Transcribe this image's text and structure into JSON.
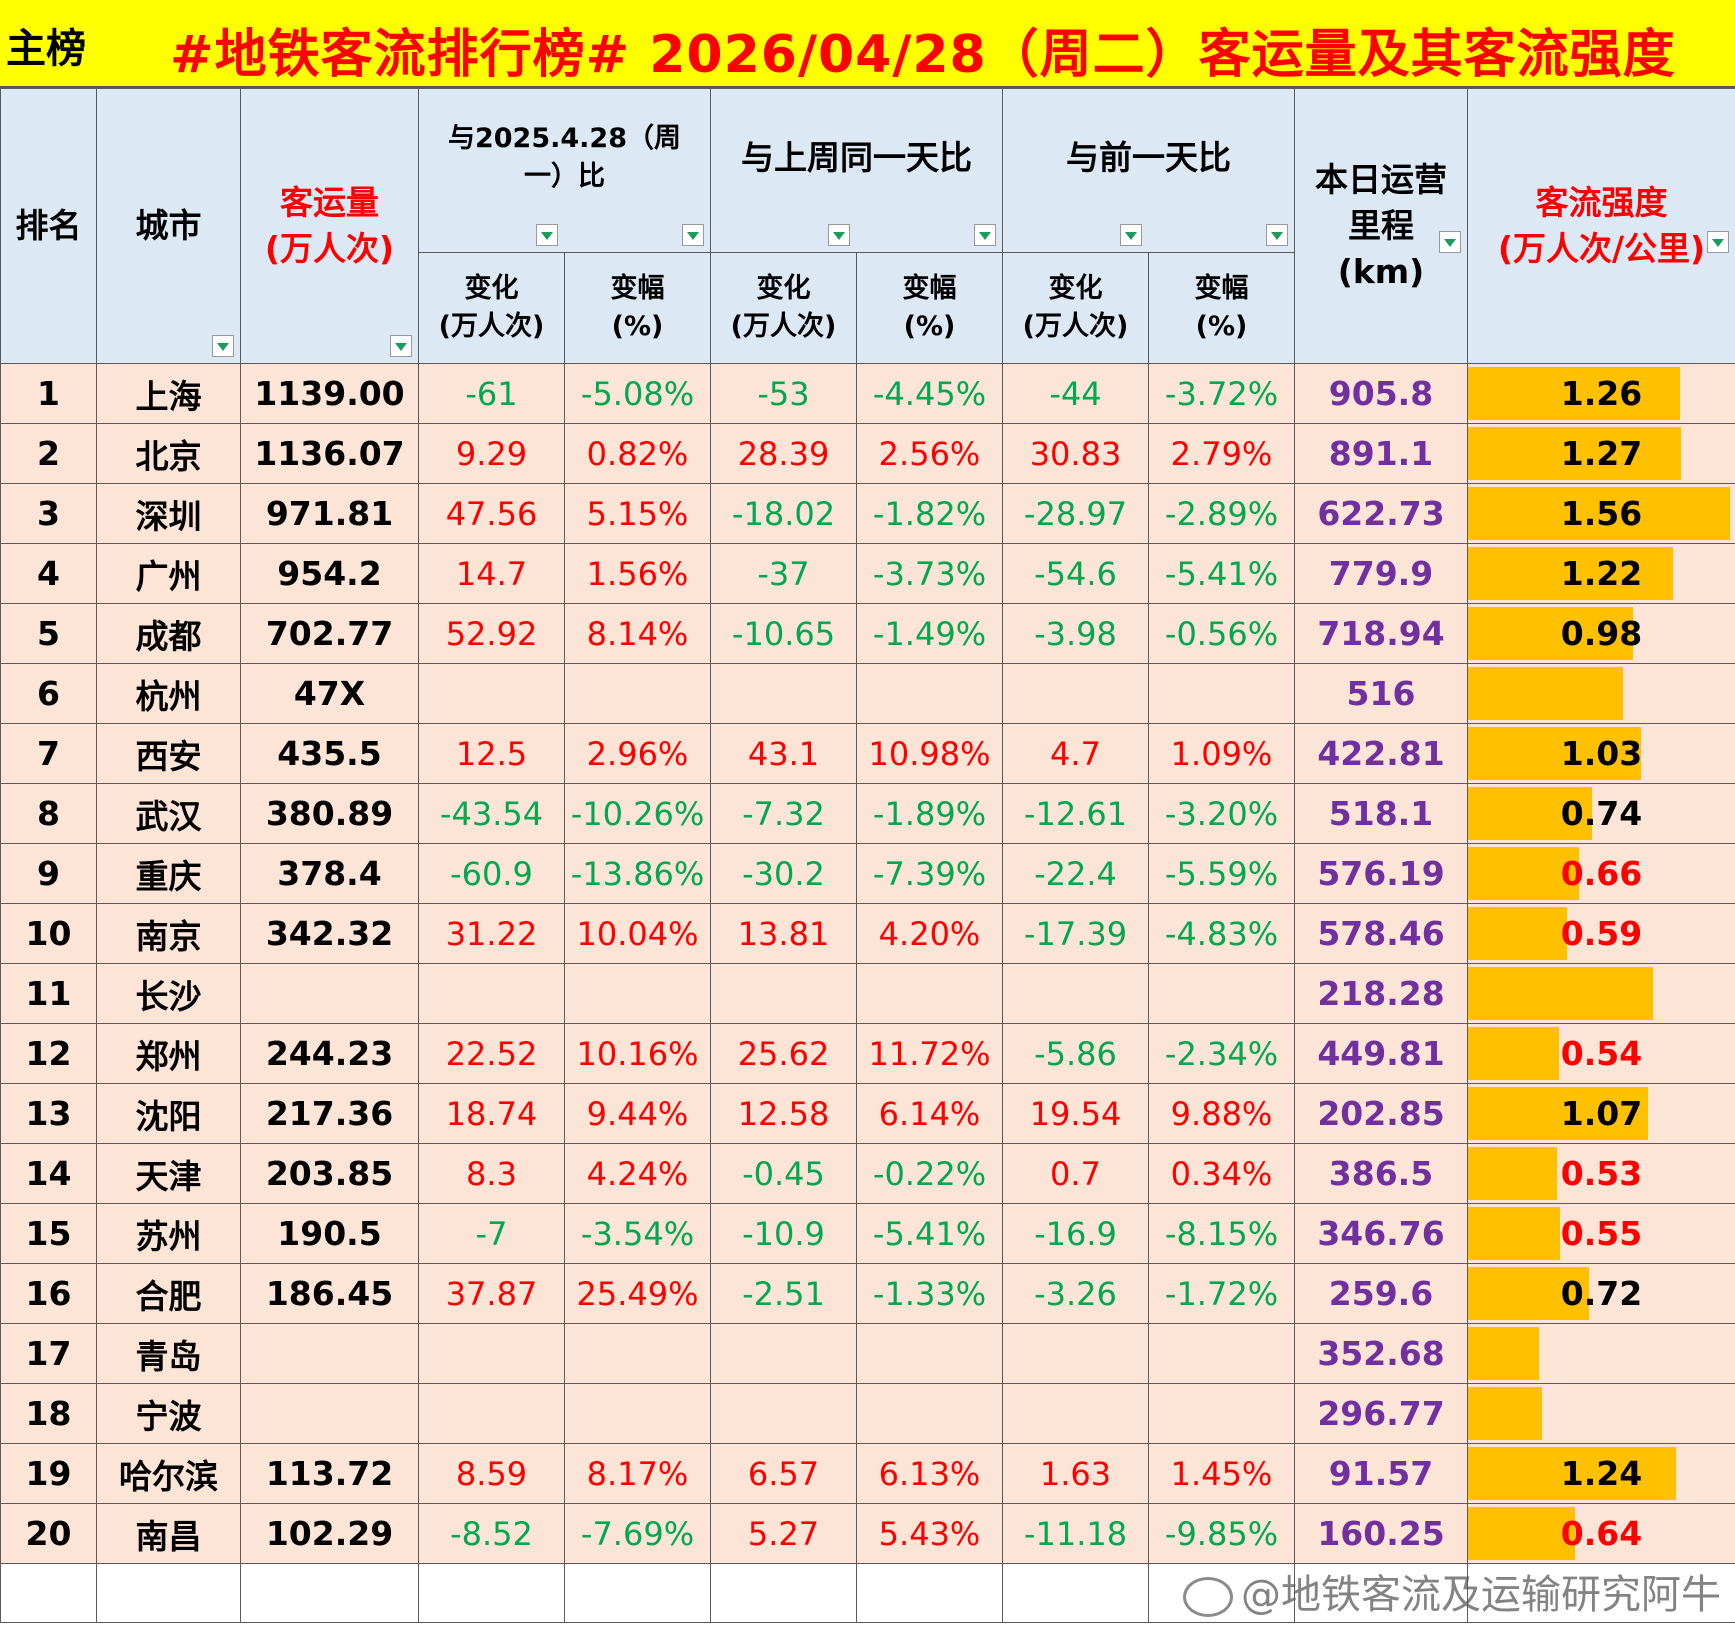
{
  "title": {
    "tag": "主榜",
    "main": "#地铁客流排行榜# 2026/04/28（周二）客运量及其客流强度"
  },
  "headers": {
    "rank": "排名",
    "city": "城市",
    "volume_line1": "客运量",
    "volume_line2": "(万人次)",
    "yoy_group_line1": "与2025.4.28（周",
    "yoy_group_line2": "一）比",
    "wow_group": "与上周同一天比",
    "dod_group": "与前一天比",
    "change_line1": "变化",
    "change_line2": "(万人次)",
    "pct_line1": "变幅",
    "pct_line2": "(%)",
    "km_line1": "本日运营",
    "km_line2": "里程",
    "km_line3": "(km)",
    "intensity_line1": "客流强度",
    "intensity_line2": "(万人次/公里)"
  },
  "rows": [
    {
      "rank": "1",
      "city": "上海",
      "volume": "1139.00",
      "yoy_chg": "-61",
      "yoy_pct": "-5.08%",
      "wow_chg": "-53",
      "wow_pct": "-4.45%",
      "dod_chg": "-44",
      "dod_pct": "-3.72%",
      "km": "905.8",
      "intensity": "1.26",
      "intensity_value": 1.26
    },
    {
      "rank": "2",
      "city": "北京",
      "volume": "1136.07",
      "yoy_chg": "9.29",
      "yoy_pct": "0.82%",
      "wow_chg": "28.39",
      "wow_pct": "2.56%",
      "dod_chg": "30.83",
      "dod_pct": "2.79%",
      "km": "891.1",
      "intensity": "1.27",
      "intensity_value": 1.27
    },
    {
      "rank": "3",
      "city": "深圳",
      "volume": "971.81",
      "yoy_chg": "47.56",
      "yoy_pct": "5.15%",
      "wow_chg": "-18.02",
      "wow_pct": "-1.82%",
      "dod_chg": "-28.97",
      "dod_pct": "-2.89%",
      "km": "622.73",
      "intensity": "1.56",
      "intensity_value": 1.56
    },
    {
      "rank": "4",
      "city": "广州",
      "volume": "954.2",
      "yoy_chg": "14.7",
      "yoy_pct": "1.56%",
      "wow_chg": "-37",
      "wow_pct": "-3.73%",
      "dod_chg": "-54.6",
      "dod_pct": "-5.41%",
      "km": "779.9",
      "intensity": "1.22",
      "intensity_value": 1.22
    },
    {
      "rank": "5",
      "city": "成都",
      "volume": "702.77",
      "yoy_chg": "52.92",
      "yoy_pct": "8.14%",
      "wow_chg": "-10.65",
      "wow_pct": "-1.49%",
      "dod_chg": "-3.98",
      "dod_pct": "-0.56%",
      "km": "718.94",
      "intensity": "0.98",
      "intensity_value": 0.98
    },
    {
      "rank": "6",
      "city": "杭州",
      "volume": "47X",
      "yoy_chg": "",
      "yoy_pct": "",
      "wow_chg": "",
      "wow_pct": "",
      "dod_chg": "",
      "dod_pct": "",
      "km": "516",
      "intensity": "",
      "intensity_value": 0.92
    },
    {
      "rank": "7",
      "city": "西安",
      "volume": "435.5",
      "yoy_chg": "12.5",
      "yoy_pct": "2.96%",
      "wow_chg": "43.1",
      "wow_pct": "10.98%",
      "dod_chg": "4.7",
      "dod_pct": "1.09%",
      "km": "422.81",
      "intensity": "1.03",
      "intensity_value": 1.03
    },
    {
      "rank": "8",
      "city": "武汉",
      "volume": "380.89",
      "yoy_chg": "-43.54",
      "yoy_pct": "-10.26%",
      "wow_chg": "-7.32",
      "wow_pct": "-1.89%",
      "dod_chg": "-12.61",
      "dod_pct": "-3.20%",
      "km": "518.1",
      "intensity": "0.74",
      "intensity_value": 0.74
    },
    {
      "rank": "9",
      "city": "重庆",
      "volume": "378.4",
      "yoy_chg": "-60.9",
      "yoy_pct": "-13.86%",
      "wow_chg": "-30.2",
      "wow_pct": "-7.39%",
      "dod_chg": "-22.4",
      "dod_pct": "-5.59%",
      "km": "576.19",
      "intensity": "0.66",
      "intensity_value": 0.66
    },
    {
      "rank": "10",
      "city": "南京",
      "volume": "342.32",
      "yoy_chg": "31.22",
      "yoy_pct": "10.04%",
      "wow_chg": "13.81",
      "wow_pct": "4.20%",
      "dod_chg": "-17.39",
      "dod_pct": "-4.83%",
      "km": "578.46",
      "intensity": "0.59",
      "intensity_value": 0.59
    },
    {
      "rank": "11",
      "city": "长沙",
      "volume": "",
      "yoy_chg": "",
      "yoy_pct": "",
      "wow_chg": "",
      "wow_pct": "",
      "dod_chg": "",
      "dod_pct": "",
      "km": "218.28",
      "intensity": "",
      "intensity_value": 1.1
    },
    {
      "rank": "12",
      "city": "郑州",
      "volume": "244.23",
      "yoy_chg": "22.52",
      "yoy_pct": "10.16%",
      "wow_chg": "25.62",
      "wow_pct": "11.72%",
      "dod_chg": "-5.86",
      "dod_pct": "-2.34%",
      "km": "449.81",
      "intensity": "0.54",
      "intensity_value": 0.54
    },
    {
      "rank": "13",
      "city": "沈阳",
      "volume": "217.36",
      "yoy_chg": "18.74",
      "yoy_pct": "9.44%",
      "wow_chg": "12.58",
      "wow_pct": "6.14%",
      "dod_chg": "19.54",
      "dod_pct": "9.88%",
      "km": "202.85",
      "intensity": "1.07",
      "intensity_value": 1.07
    },
    {
      "rank": "14",
      "city": "天津",
      "volume": "203.85",
      "yoy_chg": "8.3",
      "yoy_pct": "4.24%",
      "wow_chg": "-0.45",
      "wow_pct": "-0.22%",
      "dod_chg": "0.7",
      "dod_pct": "0.34%",
      "km": "386.5",
      "intensity": "0.53",
      "intensity_value": 0.53
    },
    {
      "rank": "15",
      "city": "苏州",
      "volume": "190.5",
      "yoy_chg": "-7",
      "yoy_pct": "-3.54%",
      "wow_chg": "-10.9",
      "wow_pct": "-5.41%",
      "dod_chg": "-16.9",
      "dod_pct": "-8.15%",
      "km": "346.76",
      "intensity": "0.55",
      "intensity_value": 0.55
    },
    {
      "rank": "16",
      "city": "合肥",
      "volume": "186.45",
      "yoy_chg": "37.87",
      "yoy_pct": "25.49%",
      "wow_chg": "-2.51",
      "wow_pct": "-1.33%",
      "dod_chg": "-3.26",
      "dod_pct": "-1.72%",
      "km": "259.6",
      "intensity": "0.72",
      "intensity_value": 0.72
    },
    {
      "rank": "17",
      "city": "青岛",
      "volume": "",
      "yoy_chg": "",
      "yoy_pct": "",
      "wow_chg": "",
      "wow_pct": "",
      "dod_chg": "",
      "dod_pct": "",
      "km": "352.68",
      "intensity": "",
      "intensity_value": 0.42
    },
    {
      "rank": "18",
      "city": "宁波",
      "volume": "",
      "yoy_chg": "",
      "yoy_pct": "",
      "wow_chg": "",
      "wow_pct": "",
      "dod_chg": "",
      "dod_pct": "",
      "km": "296.77",
      "intensity": "",
      "intensity_value": 0.44
    },
    {
      "rank": "19",
      "city": "哈尔滨",
      "volume": "113.72",
      "yoy_chg": "8.59",
      "yoy_pct": "8.17%",
      "wow_chg": "6.57",
      "wow_pct": "6.13%",
      "dod_chg": "1.63",
      "dod_pct": "1.45%",
      "km": "91.57",
      "intensity": "1.24",
      "intensity_value": 1.24
    },
    {
      "rank": "20",
      "city": "南昌",
      "volume": "102.29",
      "yoy_chg": "-8.52",
      "yoy_pct": "-7.69%",
      "wow_chg": "5.27",
      "wow_pct": "5.43%",
      "dod_chg": "-11.18",
      "dod_pct": "-9.85%",
      "km": "160.25",
      "intensity": "0.64",
      "intensity_value": 0.64
    }
  ],
  "intensity_scale_max": 1.56,
  "watermark": "@地铁客流及运输研究阿牛",
  "colors": {
    "title_bg": "#ffff00",
    "title_text": "#ff0000",
    "header_bg": "#dce9f5",
    "row_bg": "#fce4d6",
    "increase": "#ff0000",
    "decrease": "#00a84f",
    "km": "#7030a0",
    "intensity_bar": "#ffc000"
  }
}
